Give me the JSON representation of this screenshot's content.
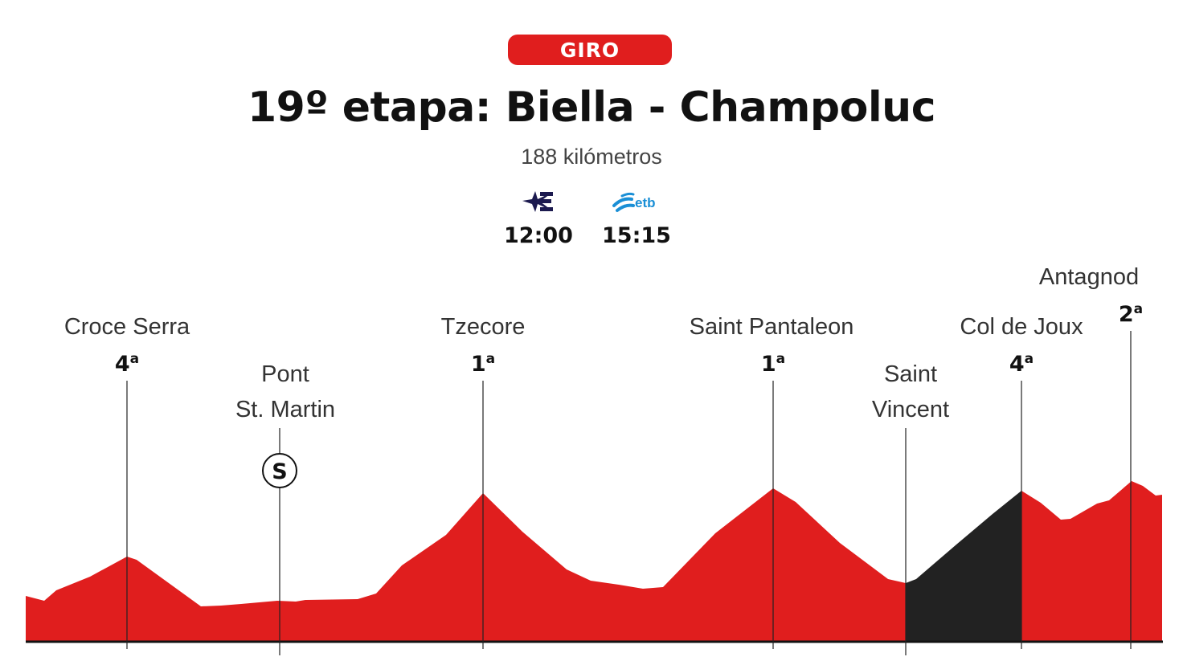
{
  "race": "GIRO",
  "title": "19º etapa: Biella - Champoluc",
  "distance": "188 kilómetros",
  "broadcasts": [
    {
      "channel": "eurosport-icon",
      "time": "12:00"
    },
    {
      "channel": "etb-icon",
      "logo_text": "etb",
      "time": "15:15"
    }
  ],
  "colors": {
    "accent": "#e01e1e",
    "final_section": "#222222",
    "baseline": "#111111"
  },
  "markers": [
    {
      "name_lines": [
        "Croce Serra"
      ],
      "category": "4",
      "type": "climb"
    },
    {
      "name_lines": [
        "Pont",
        "St. Martin"
      ],
      "symbol": "S",
      "type": "sprint"
    },
    {
      "name_lines": [
        "Tzecore"
      ],
      "category": "1",
      "type": "climb"
    },
    {
      "name_lines": [
        "Saint Pantaleon"
      ],
      "category": "1",
      "type": "climb"
    },
    {
      "name_lines": [
        "Saint",
        "Vincent"
      ],
      "type": "point"
    },
    {
      "name_lines": [
        "Col de Joux"
      ],
      "category": "4",
      "type": "climb"
    },
    {
      "name_lines": [
        "Antagnod"
      ],
      "category": "2",
      "type": "climb"
    }
  ],
  "category_suffix": "a"
}
